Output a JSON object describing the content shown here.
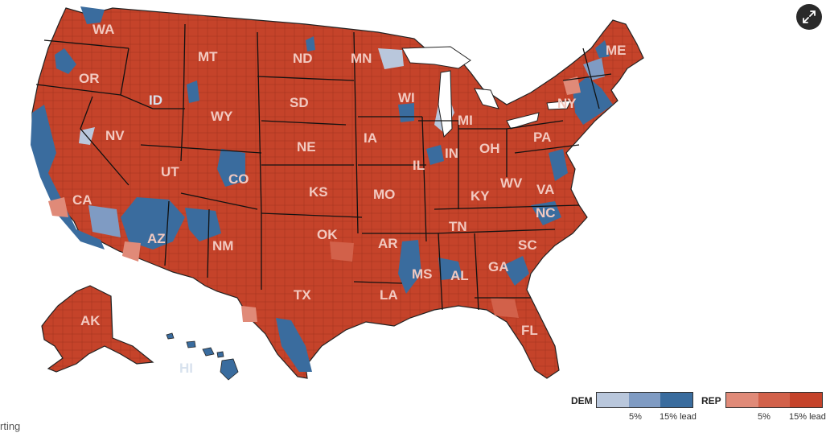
{
  "map": {
    "states": [
      {
        "abbr": "WA",
        "lean": "rep"
      },
      {
        "abbr": "OR",
        "lean": "rep"
      },
      {
        "abbr": "CA",
        "lean": "rep"
      },
      {
        "abbr": "ID",
        "lean": "blue"
      },
      {
        "abbr": "NV",
        "lean": "rep"
      },
      {
        "abbr": "MT",
        "lean": "rep"
      },
      {
        "abbr": "WY",
        "lean": "rep"
      },
      {
        "abbr": "UT",
        "lean": "rep"
      },
      {
        "abbr": "AZ",
        "lean": "rep"
      },
      {
        "abbr": "CO",
        "lean": "rep"
      },
      {
        "abbr": "NM",
        "lean": "rep"
      },
      {
        "abbr": "ND",
        "lean": "rep"
      },
      {
        "abbr": "SD",
        "lean": "rep"
      },
      {
        "abbr": "NE",
        "lean": "rep"
      },
      {
        "abbr": "KS",
        "lean": "rep"
      },
      {
        "abbr": "OK",
        "lean": "rep"
      },
      {
        "abbr": "TX",
        "lean": "rep"
      },
      {
        "abbr": "MN",
        "lean": "rep"
      },
      {
        "abbr": "IA",
        "lean": "rep"
      },
      {
        "abbr": "MO",
        "lean": "rep"
      },
      {
        "abbr": "AR",
        "lean": "rep"
      },
      {
        "abbr": "LA",
        "lean": "rep"
      },
      {
        "abbr": "WI",
        "lean": "rep"
      },
      {
        "abbr": "IL",
        "lean": "rep"
      },
      {
        "abbr": "MI",
        "lean": "rep"
      },
      {
        "abbr": "IN",
        "lean": "rep"
      },
      {
        "abbr": "OH",
        "lean": "rep"
      },
      {
        "abbr": "KY",
        "lean": "rep"
      },
      {
        "abbr": "TN",
        "lean": "rep"
      },
      {
        "abbr": "MS",
        "lean": "rep"
      },
      {
        "abbr": "AL",
        "lean": "rep"
      },
      {
        "abbr": "GA",
        "lean": "rep"
      },
      {
        "abbr": "FL",
        "lean": "rep"
      },
      {
        "abbr": "SC",
        "lean": "rep"
      },
      {
        "abbr": "NC",
        "lean": "rep"
      },
      {
        "abbr": "VA",
        "lean": "rep"
      },
      {
        "abbr": "WV",
        "lean": "rep"
      },
      {
        "abbr": "PA",
        "lean": "rep"
      },
      {
        "abbr": "NY",
        "lean": "rep"
      },
      {
        "abbr": "ME",
        "lean": "rep"
      },
      {
        "abbr": "AK",
        "lean": "rep"
      },
      {
        "abbr": "HI",
        "lean": "blue"
      }
    ]
  },
  "colors": {
    "dem": [
      "#b9c7dc",
      "#7f9bc3",
      "#3a6c9e"
    ],
    "rep": [
      "#e08a78",
      "#d2614a",
      "#c5432a"
    ],
    "border": "#222222",
    "expand_bg": "#2a2a2a"
  },
  "legend": {
    "dem": {
      "title": "DEM",
      "tick1": "5%",
      "tick2": "15% lead"
    },
    "rep": {
      "title": "REP",
      "tick1": "5%",
      "tick2": "15% lead"
    }
  },
  "expand_button": {
    "icon": "expand-icon"
  },
  "footnote": "rting"
}
